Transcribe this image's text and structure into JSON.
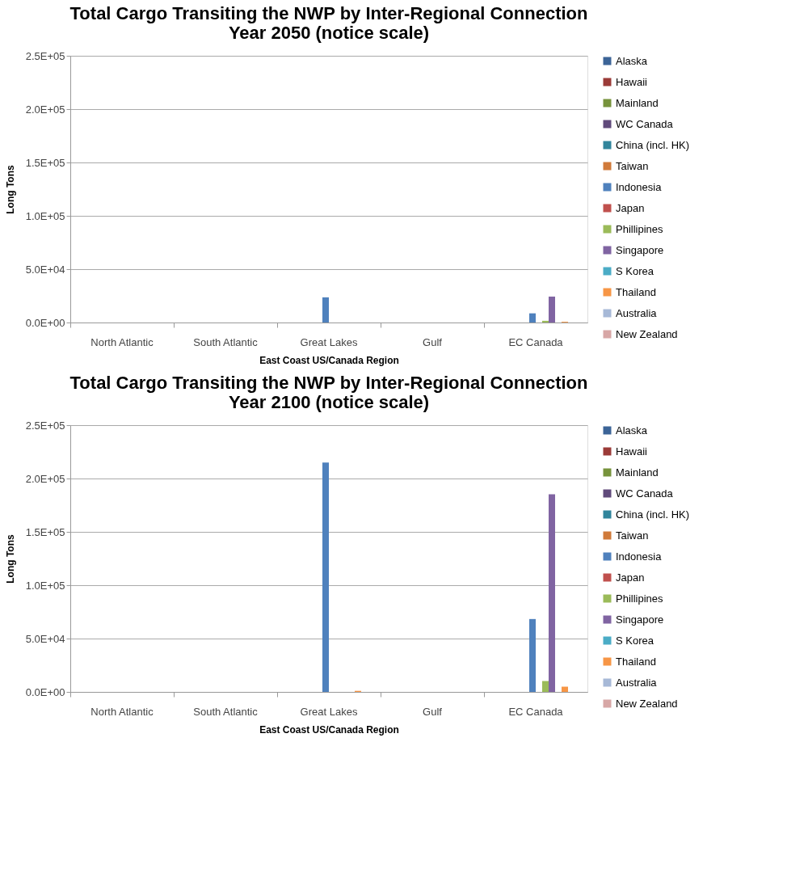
{
  "chart_data": [
    {
      "type": "bar",
      "title": "Total Cargo Transiting the NWP by Inter-Regional Connection\nYear 2050 (notice scale)",
      "xlabel": "East Coast US/Canada Region",
      "ylabel": "Long Tons",
      "categories": [
        "North Atlantic",
        "South Atlantic",
        "Great Lakes",
        "Gulf",
        "EC Canada"
      ],
      "series": [
        {
          "name": "Alaska",
          "color": "#3c6497",
          "values": [
            null,
            null,
            null,
            null,
            null
          ]
        },
        {
          "name": "Hawaii",
          "color": "#9b3b38",
          "values": [
            null,
            null,
            null,
            null,
            null
          ]
        },
        {
          "name": "Mainland",
          "color": "#77933c",
          "values": [
            null,
            null,
            null,
            null,
            null
          ]
        },
        {
          "name": "WC Canada",
          "color": "#604a7b",
          "values": [
            null,
            null,
            null,
            null,
            null
          ]
        },
        {
          "name": "China (incl. HK)",
          "color": "#31859c",
          "values": [
            null,
            null,
            null,
            null,
            null
          ]
        },
        {
          "name": "Taiwan",
          "color": "#d07a3a",
          "values": [
            null,
            null,
            null,
            null,
            null
          ]
        },
        {
          "name": "Indonesia",
          "color": "#4f81bd",
          "values": [
            null,
            null,
            23600,
            null,
            8600
          ]
        },
        {
          "name": "Japan",
          "color": "#c0504d",
          "values": [
            null,
            null,
            null,
            null,
            null
          ]
        },
        {
          "name": "Phillipines",
          "color": "#9bbb59",
          "values": [
            null,
            null,
            null,
            null,
            1600
          ]
        },
        {
          "name": "Singapore",
          "color": "#8064a2",
          "values": [
            null,
            null,
            null,
            null,
            24300
          ]
        },
        {
          "name": "S Korea",
          "color": "#4bacc6",
          "values": [
            null,
            null,
            null,
            null,
            null
          ]
        },
        {
          "name": "Thailand",
          "color": "#f79646",
          "values": [
            null,
            null,
            null,
            null,
            700
          ]
        },
        {
          "name": "Australia",
          "color": "#a7b9d7",
          "values": [
            null,
            null,
            null,
            null,
            null
          ]
        },
        {
          "name": "New Zealand",
          "color": "#d7a7a6",
          "values": [
            null,
            null,
            null,
            null,
            null
          ]
        }
      ],
      "ylim": [
        0,
        250000
      ],
      "yticks": [
        {
          "value": 0,
          "label": "0.0E+00"
        },
        {
          "value": 50000,
          "label": "5.0E+04"
        },
        {
          "value": 100000,
          "label": "1.0E+05"
        },
        {
          "value": 150000,
          "label": "1.5E+05"
        },
        {
          "value": 200000,
          "label": "2.0E+05"
        },
        {
          "value": 250000,
          "label": "2.5E+05"
        }
      ],
      "grid": "y",
      "legend": "right"
    },
    {
      "type": "bar",
      "title": "Total Cargo Transiting the NWP by Inter-Regional Connection\nYear 2100 (notice scale)",
      "xlabel": "East Coast US/Canada Region",
      "ylabel": "Long Tons",
      "categories": [
        "North Atlantic",
        "South Atlantic",
        "Great Lakes",
        "Gulf",
        "EC Canada"
      ],
      "series": [
        {
          "name": "Alaska",
          "color": "#3c6497",
          "values": [
            null,
            null,
            null,
            null,
            null
          ]
        },
        {
          "name": "Hawaii",
          "color": "#9b3b38",
          "values": [
            null,
            null,
            null,
            null,
            null
          ]
        },
        {
          "name": "Mainland",
          "color": "#77933c",
          "values": [
            null,
            null,
            null,
            null,
            null
          ]
        },
        {
          "name": "WC Canada",
          "color": "#604a7b",
          "values": [
            null,
            null,
            null,
            null,
            null
          ]
        },
        {
          "name": "China (incl. HK)",
          "color": "#31859c",
          "values": [
            null,
            null,
            null,
            null,
            null
          ]
        },
        {
          "name": "Taiwan",
          "color": "#d07a3a",
          "values": [
            null,
            null,
            null,
            null,
            null
          ]
        },
        {
          "name": "Indonesia",
          "color": "#4f81bd",
          "values": [
            null,
            null,
            215000,
            null,
            68300
          ]
        },
        {
          "name": "Japan",
          "color": "#c0504d",
          "values": [
            null,
            null,
            null,
            null,
            null
          ]
        },
        {
          "name": "Phillipines",
          "color": "#9bbb59",
          "values": [
            null,
            null,
            null,
            null,
            10200
          ]
        },
        {
          "name": "Singapore",
          "color": "#8064a2",
          "values": [
            null,
            null,
            null,
            null,
            185300
          ]
        },
        {
          "name": "S Korea",
          "color": "#4bacc6",
          "values": [
            null,
            null,
            null,
            null,
            null
          ]
        },
        {
          "name": "Thailand",
          "color": "#f79646",
          "values": [
            null,
            null,
            1000,
            null,
            4900
          ]
        },
        {
          "name": "Australia",
          "color": "#a7b9d7",
          "values": [
            null,
            null,
            null,
            null,
            null
          ]
        },
        {
          "name": "New Zealand",
          "color": "#d7a7a6",
          "values": [
            null,
            null,
            null,
            null,
            null
          ]
        }
      ],
      "ylim": [
        0,
        250000
      ],
      "yticks": [
        {
          "value": 0,
          "label": "0.0E+00"
        },
        {
          "value": 50000,
          "label": "5.0E+04"
        },
        {
          "value": 100000,
          "label": "1.0E+05"
        },
        {
          "value": 150000,
          "label": "1.5E+05"
        },
        {
          "value": 200000,
          "label": "2.0E+05"
        },
        {
          "value": 250000,
          "label": "2.5E+05"
        }
      ],
      "grid": "y",
      "legend": "right"
    }
  ]
}
